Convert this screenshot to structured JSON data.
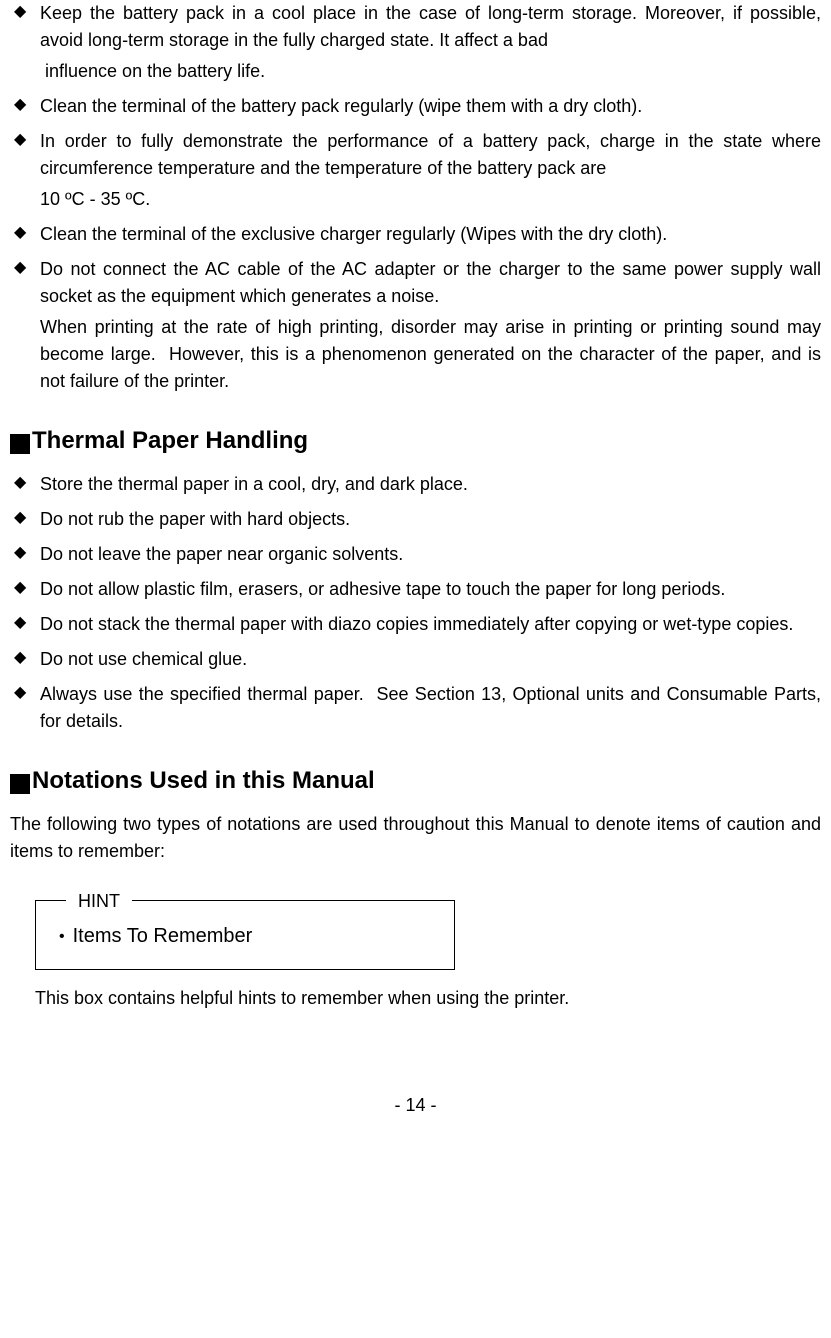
{
  "section1": {
    "items": [
      {
        "text": "Keep the battery pack in a cool place in the case of long-term storage. Moreover, if possible, avoid long-term storage in the fully charged state. It affect a bad",
        "sub": " influence on the battery life."
      },
      {
        "text": "Clean the terminal of the battery pack regularly (wipe them with a dry cloth)."
      },
      {
        "text": "In order to fully demonstrate the performance of a battery pack, charge in the state where circumference temperature and the temperature of the battery pack are",
        "sub": "10 ºC - 35 ºC."
      },
      {
        "text": "Clean the terminal of the exclusive charger regularly (Wipes with the dry cloth)."
      },
      {
        "text": "Do not connect the AC cable of the AC adapter or the charger to the same power supply wall socket as the equipment which generates a noise.",
        "sub": "When printing at the rate of high printing, disorder may arise in printing or printing sound may become large.  However, this is a phenomenon generated on the character of the paper, and is not failure of the printer."
      }
    ]
  },
  "section2": {
    "heading": "Thermal Paper Handling",
    "items": [
      {
        "text": "Store the thermal paper in a cool, dry, and dark place."
      },
      {
        "text": "Do not rub the paper with hard objects."
      },
      {
        "text": "Do not leave the paper near organic solvents."
      },
      {
        "text": "Do not allow plastic film, erasers, or adhesive tape to touch the paper for long periods."
      },
      {
        "text": "Do not stack the thermal paper with diazo copies immediately after copying or wet-type copies."
      },
      {
        "text": "Do not use chemical glue."
      },
      {
        "text": "Always use the specified thermal paper.  See Section 13, Optional units and Consumable Parts, for details."
      }
    ]
  },
  "section3": {
    "heading": "Notations Used in this Manual",
    "intro": "The following two types of notations are used throughout this Manual to denote items of caution and items to remember:",
    "hint_label": "HINT",
    "hint_content": "Items To Remember",
    "hint_desc": "This box contains helpful hints to remember when using the printer."
  },
  "page_number": "- 14 -"
}
